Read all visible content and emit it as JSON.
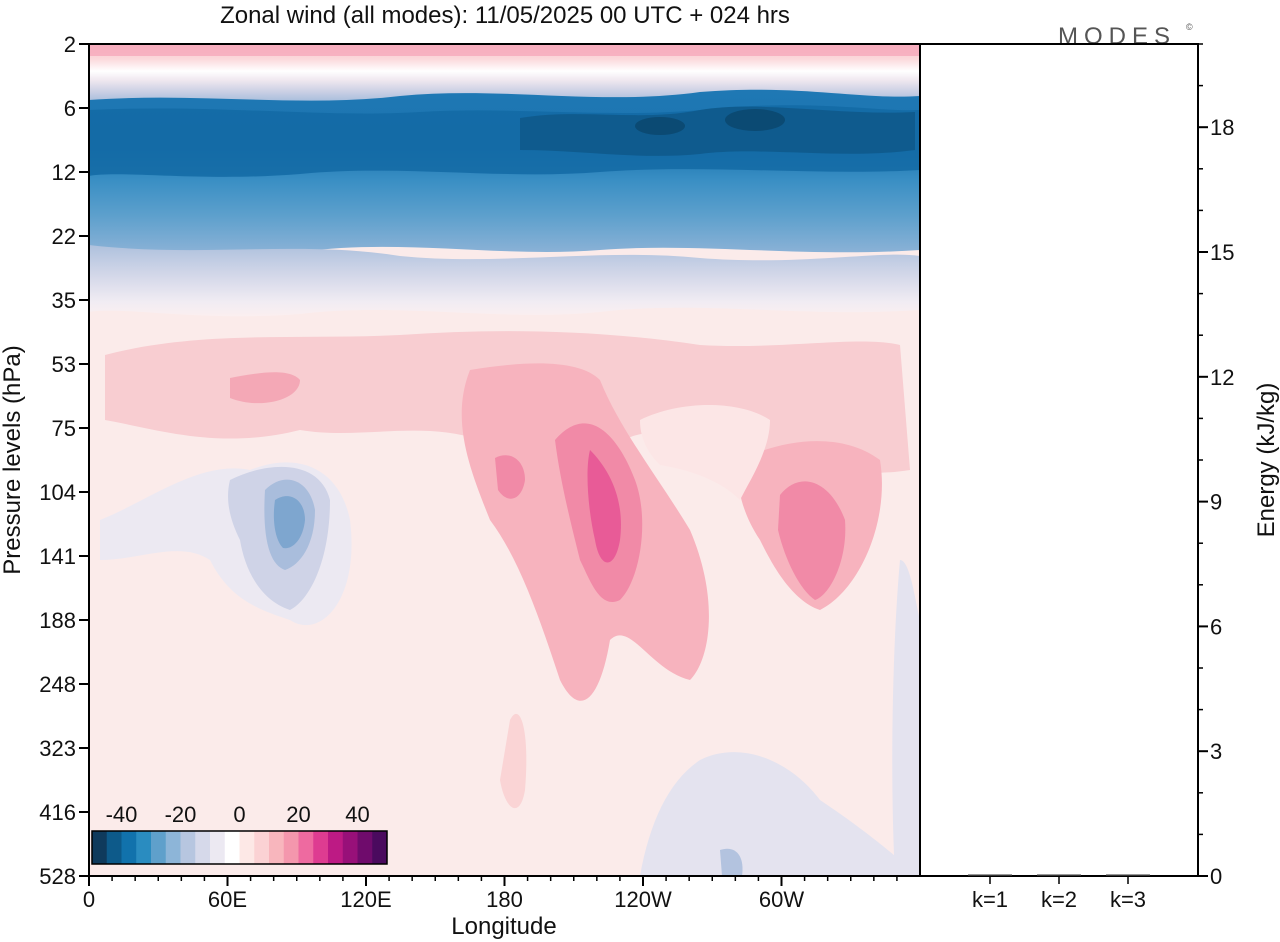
{
  "header": {
    "title": "Zonal wind (all modes):  11/05/2025  00 UTC  + 024 hrs",
    "logo": "MODES",
    "logo_mark": "©"
  },
  "chart_data": [
    {
      "type": "heatmap",
      "title": "Zonal wind (all modes):  11/05/2025  00 UTC  + 024 hrs",
      "xlabel": "Longitude",
      "ylabel": "Pressure levels (hPa)",
      "x_ticks": [
        "0",
        "60E",
        "120E",
        "180",
        "120W",
        "60W"
      ],
      "y_ticks": [
        "2",
        "6",
        "12",
        "22",
        "35",
        "53",
        "75",
        "104",
        "141",
        "188",
        "248",
        "323",
        "416",
        "528"
      ],
      "y_scale": "log (pressure levels)",
      "colorbar": {
        "tick_labels": [
          "-40",
          "-20",
          "0",
          "20",
          "40"
        ],
        "levels": [
          -45,
          -40,
          -35,
          -30,
          -25,
          -20,
          -15,
          -10,
          -5,
          0,
          5,
          10,
          15,
          20,
          25,
          30,
          35,
          40,
          45
        ],
        "colors": [
          "#0f3a5c",
          "#0d5a8a",
          "#1172ac",
          "#2a8cc0",
          "#5fa0cb",
          "#8db5d8",
          "#b7c6e0",
          "#d6d9ea",
          "#ece9f2",
          "#ffffff",
          "#fde8e6",
          "#fbd2d4",
          "#f8b6bd",
          "#f497ad",
          "#ee6aa0",
          "#de3c91",
          "#bd1a84",
          "#981079",
          "#6f0b6c",
          "#4a0a5e"
        ]
      },
      "description_regions": [
        {
          "pressure_range": [
            2,
            4
          ],
          "approx_value": 15,
          "note": "weak westerly near model top"
        },
        {
          "pressure_range": [
            6,
            22
          ],
          "approx_value": -35,
          "note": "strong easterly band, minimum near 8 hPa below -40"
        },
        {
          "pressure_range": [
            53,
            188
          ],
          "approx_value": 15,
          "note": "westerly maxima near 180-120W and 60W, peak ~30"
        },
        {
          "pressure_range": [
            104,
            188
          ],
          "approx_value": -15,
          "note": "easterly pocket near 80E"
        }
      ]
    },
    {
      "type": "bar",
      "categories": [
        "k=1",
        "k=2",
        "k=3"
      ],
      "values": [
        0.02,
        0.01,
        0.01
      ],
      "ylabel": "Energy (kJ/kg)",
      "y_ticks": [
        "0",
        "3",
        "6",
        "9",
        "12",
        "15",
        "18"
      ],
      "ylim": [
        0,
        20
      ]
    }
  ]
}
